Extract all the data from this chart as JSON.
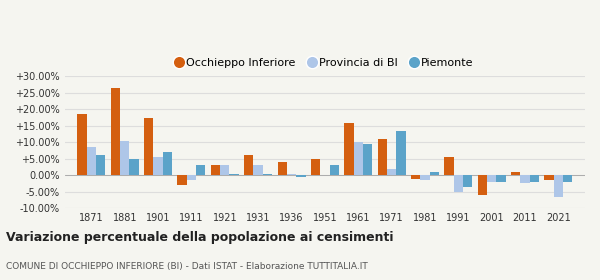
{
  "years": [
    1871,
    1881,
    1901,
    1911,
    1921,
    1931,
    1936,
    1951,
    1961,
    1971,
    1981,
    1991,
    2001,
    2011,
    2021
  ],
  "occhieppo": [
    18.5,
    26.5,
    17.5,
    -3.0,
    3.0,
    6.0,
    4.0,
    5.0,
    16.0,
    11.0,
    -1.0,
    5.5,
    -6.0,
    1.0,
    -1.5
  ],
  "provincia": [
    8.5,
    10.5,
    5.5,
    -1.5,
    3.0,
    3.0,
    0.5,
    0.2,
    10.0,
    2.0,
    -1.5,
    -5.0,
    -2.0,
    -2.5,
    -6.5
  ],
  "piemonte": [
    6.0,
    5.0,
    7.0,
    3.0,
    0.5,
    0.5,
    -0.5,
    3.0,
    9.5,
    13.5,
    1.0,
    -3.5,
    -2.0,
    -2.0,
    -2.0
  ],
  "color_occhieppo": "#d45f10",
  "color_provincia": "#aec6e8",
  "color_piemonte": "#5ba3c9",
  "title": "Variazione percentuale della popolazione ai censimenti",
  "subtitle": "COMUNE DI OCCHIEPPO INFERIORE (BI) - Dati ISTAT - Elaborazione TUTTITALIA.IT",
  "ylim": [
    -10,
    30
  ],
  "yticks": [
    -10,
    -5,
    0,
    5,
    10,
    15,
    20,
    25,
    30
  ],
  "background_color": "#f5f5f0",
  "grid_color": "#dddddd",
  "bar_width": 0.28,
  "legend_labels": [
    "Occhieppo Inferiore",
    "Provincia di BI",
    "Piemonte"
  ]
}
